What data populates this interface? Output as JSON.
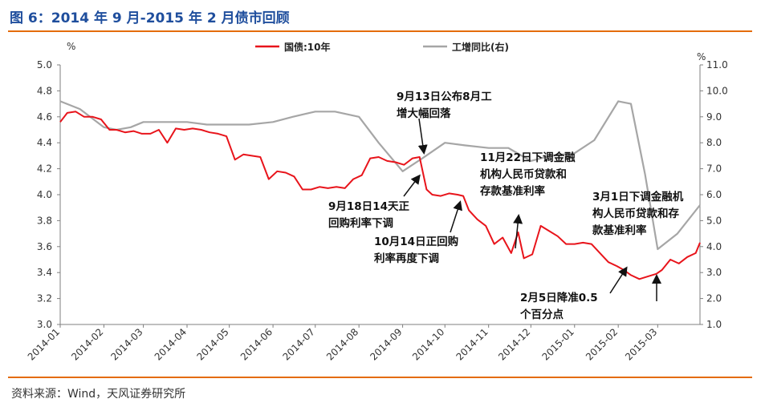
{
  "header": {
    "title": "图 6：2014 年 9 月-2015 年 2 月债市回顾"
  },
  "footer": {
    "source": "资料来源：Wind，天风证券研究所"
  },
  "chart_data": {
    "type": "line",
    "title": "",
    "left_unit": "%",
    "right_unit": "%",
    "ylim_left": [
      3.0,
      5.0
    ],
    "ylim_right": [
      1.0,
      11.0
    ],
    "left_ticks": [
      "3.0",
      "3.2",
      "3.4",
      "3.6",
      "3.8",
      "4.0",
      "4.2",
      "4.4",
      "4.6",
      "4.8",
      "5.0"
    ],
    "right_ticks": [
      "1.0",
      "2.0",
      "3.0",
      "4.0",
      "5.0",
      "6.0",
      "7.0",
      "8.0",
      "9.0",
      "10.0",
      "11.0"
    ],
    "x_ticks": [
      "2014-01",
      "2014-02",
      "2014-03",
      "2014-04",
      "2014-05",
      "2014-06",
      "2014-07",
      "2014-08",
      "2014-09",
      "2014-10",
      "2014-11",
      "2014-12",
      "2015-01",
      "2015-02",
      "2015-03"
    ],
    "legend": {
      "position": "top-center"
    },
    "colors": {
      "bond": "#e8141b",
      "ip": "#a6a6a6"
    },
    "series": [
      {
        "name": "国债:10年",
        "axis": "left",
        "x": [
          "2014-01-01",
          "2014-01-06",
          "2014-01-12",
          "2014-01-18",
          "2014-01-24",
          "2014-01-30",
          "2014-02-05",
          "2014-02-10",
          "2014-02-16",
          "2014-02-22",
          "2014-02-28",
          "2014-03-06",
          "2014-03-12",
          "2014-03-18",
          "2014-03-24",
          "2014-03-30",
          "2014-04-05",
          "2014-04-11",
          "2014-04-17",
          "2014-04-23",
          "2014-04-29",
          "2014-05-05",
          "2014-05-11",
          "2014-05-17",
          "2014-05-23",
          "2014-05-29",
          "2014-06-04",
          "2014-06-10",
          "2014-06-16",
          "2014-06-22",
          "2014-06-28",
          "2014-07-04",
          "2014-07-10",
          "2014-07-16",
          "2014-07-22",
          "2014-07-28",
          "2014-08-03",
          "2014-08-09",
          "2014-08-15",
          "2014-08-21",
          "2014-08-27",
          "2014-09-02",
          "2014-09-08",
          "2014-09-13",
          "2014-09-18",
          "2014-09-22",
          "2014-09-28",
          "2014-10-04",
          "2014-10-10",
          "2014-10-14",
          "2014-10-18",
          "2014-10-24",
          "2014-10-30",
          "2014-11-05",
          "2014-11-11",
          "2014-11-17",
          "2014-11-22",
          "2014-11-26",
          "2014-12-02",
          "2014-12-08",
          "2014-12-14",
          "2014-12-20",
          "2014-12-26",
          "2015-01-01",
          "2015-01-07",
          "2015-01-13",
          "2015-01-19",
          "2015-01-25",
          "2015-01-31",
          "2015-02-05",
          "2015-02-10",
          "2015-02-16",
          "2015-02-22",
          "2015-02-28",
          "2015-03-04",
          "2015-03-10",
          "2015-03-16",
          "2015-03-22",
          "2015-03-28",
          "2015-03-31"
        ],
        "values": [
          4.56,
          4.63,
          4.64,
          4.6,
          4.6,
          4.58,
          4.5,
          4.5,
          4.48,
          4.49,
          4.47,
          4.47,
          4.5,
          4.4,
          4.51,
          4.5,
          4.51,
          4.5,
          4.48,
          4.47,
          4.45,
          4.27,
          4.31,
          4.3,
          4.29,
          4.12,
          4.18,
          4.17,
          4.14,
          4.04,
          4.04,
          4.06,
          4.05,
          4.06,
          4.05,
          4.12,
          4.15,
          4.28,
          4.29,
          4.26,
          4.25,
          4.23,
          4.28,
          4.29,
          4.04,
          4.0,
          3.99,
          4.01,
          4.0,
          3.99,
          3.88,
          3.81,
          3.76,
          3.62,
          3.67,
          3.55,
          3.71,
          3.51,
          3.54,
          3.76,
          3.72,
          3.68,
          3.62,
          3.62,
          3.63,
          3.62,
          3.55,
          3.48,
          3.45,
          3.42,
          3.38,
          3.35,
          3.37,
          3.39,
          3.42,
          3.5,
          3.47,
          3.52,
          3.55,
          3.63
        ]
      },
      {
        "name": "工增同比(右)",
        "axis": "right",
        "x": [
          "2014-01-01",
          "2014-01-15",
          "2014-02-01",
          "2014-02-10",
          "2014-02-20",
          "2014-03-01",
          "2014-03-15",
          "2014-04-01",
          "2014-04-15",
          "2014-05-01",
          "2014-05-15",
          "2014-06-01",
          "2014-06-15",
          "2014-07-01",
          "2014-07-15",
          "2014-08-01",
          "2014-08-15",
          "2014-09-01",
          "2014-09-15",
          "2014-10-01",
          "2014-10-15",
          "2014-11-01",
          "2014-11-15",
          "2014-12-01",
          "2014-12-15",
          "2015-01-01",
          "2015-01-15",
          "2015-02-01",
          "2015-02-10",
          "2015-02-20",
          "2015-03-01",
          "2015-03-15",
          "2015-03-31"
        ],
        "values": [
          9.6,
          9.3,
          8.6,
          8.5,
          8.6,
          8.8,
          8.8,
          8.8,
          8.7,
          8.7,
          8.7,
          8.8,
          9.0,
          9.2,
          9.2,
          9.0,
          8.0,
          6.9,
          7.4,
          8.0,
          7.9,
          7.8,
          7.8,
          7.3,
          7.5,
          7.6,
          8.1,
          9.6,
          9.5,
          6.8,
          3.9,
          4.5,
          5.6
        ]
      }
    ],
    "annotations": [
      {
        "text": [
          "9月13日公布8月工",
          "增大幅回落"
        ]
      },
      {
        "text": [
          "9月18日14天正",
          "回购利率下调"
        ]
      },
      {
        "text": [
          "10月14日正回购",
          "利率再度下调"
        ]
      },
      {
        "text": [
          "11月22日下调金融",
          "机构人民币贷款和",
          "存款基准利率"
        ]
      },
      {
        "text": [
          "2月5日降准0.5",
          "个百分点"
        ]
      },
      {
        "text": [
          "3月1日下调金融机",
          "构人民币贷款和存",
          "款基准利率"
        ]
      }
    ]
  }
}
